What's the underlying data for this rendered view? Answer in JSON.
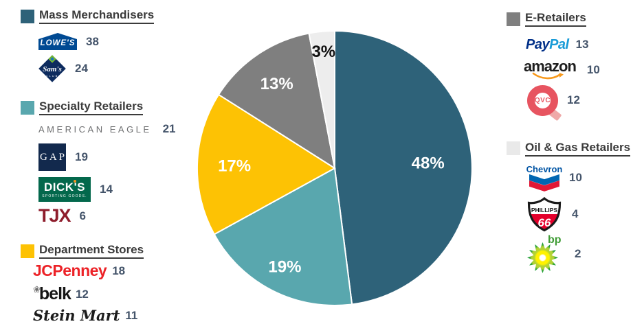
{
  "chart_data": {
    "type": "pie",
    "units": "%",
    "total": 100,
    "direction": "clockwise",
    "start_angle_deg": 0,
    "legend_position": "left-and-right",
    "slices": [
      {
        "label": "Mass Merchandisers",
        "value": 48,
        "display": "48%",
        "color": "#2E6279",
        "label_color": "#FFFFFF",
        "label_r_frac": 0.68
      },
      {
        "label": "Specialty Retailers",
        "value": 19,
        "display": "19%",
        "color": "#59A7AE",
        "label_color": "#FFFFFF",
        "label_r_frac": 0.8
      },
      {
        "label": "Department Stores",
        "value": 17,
        "display": "17%",
        "color": "#FDC204",
        "label_color": "#FFFFFF",
        "label_r_frac": 0.73
      },
      {
        "label": "E-Retailers",
        "value": 13,
        "display": "13%",
        "color": "#7F7F7F",
        "label_color": "#FFFFFF",
        "label_r_frac": 0.75
      },
      {
        "label": "Oil & Gas Retailers",
        "value": 3,
        "display": "3%",
        "color": "#EDEDED",
        "label_color": "#111111",
        "label_r_frac": 0.86
      }
    ]
  },
  "legend_left": {
    "groups": [
      {
        "title": "Mass Merchandisers",
        "swatch_color": "#2E6279",
        "items": [
          {
            "name": "Lowe's",
            "logo_text": "LOWE'S",
            "value": "38"
          },
          {
            "name": "Sam's Club",
            "logo_text": "Sam's",
            "logo_subtext": "CLUB",
            "value": "24"
          }
        ]
      },
      {
        "title": "Specialty Retailers",
        "swatch_color": "#59A7AE",
        "items": [
          {
            "name": "American Eagle",
            "logo_text": "AMERICAN EAGLE",
            "value": "21"
          },
          {
            "name": "Gap",
            "logo_text": "GAP",
            "value": "19"
          },
          {
            "name": "Dick's Sporting Goods",
            "logo_text": "DICK'S",
            "logo_subtext": "SPORTING GOODS.",
            "value": "14"
          },
          {
            "name": "TJX",
            "logo_text": "TJX",
            "value": "6"
          }
        ]
      },
      {
        "title": "Department Stores",
        "swatch_color": "#FDC204",
        "items": [
          {
            "name": "JCPenney",
            "logo_text": "JCPenney",
            "value": "18"
          },
          {
            "name": "Belk",
            "logo_flower": "❀",
            "logo_text": "belk",
            "value": "12"
          },
          {
            "name": "Stein Mart",
            "logo_text": "Stein Mart",
            "value": "11"
          }
        ]
      }
    ]
  },
  "legend_right": {
    "groups": [
      {
        "title": "E-Retailers",
        "swatch_color": "#7F7F7F",
        "items": [
          {
            "name": "PayPal",
            "logo_text": "Pay",
            "logo_text2": "Pal",
            "value": "13"
          },
          {
            "name": "Amazon",
            "logo_text": "amazon",
            "value": "10"
          },
          {
            "name": "QVC",
            "logo_text": "QVC",
            "value": "12"
          }
        ]
      },
      {
        "title": "Oil & Gas Retailers",
        "swatch_color": "#E9E9E9",
        "items": [
          {
            "name": "Chevron",
            "logo_text": "Chevron",
            "value": "10"
          },
          {
            "name": "Phillips 66",
            "logo_text": "PHILLIPS",
            "logo_subtext": "66",
            "value": "4"
          },
          {
            "name": "BP",
            "logo_text": "bp",
            "value": "2"
          }
        ]
      }
    ]
  }
}
